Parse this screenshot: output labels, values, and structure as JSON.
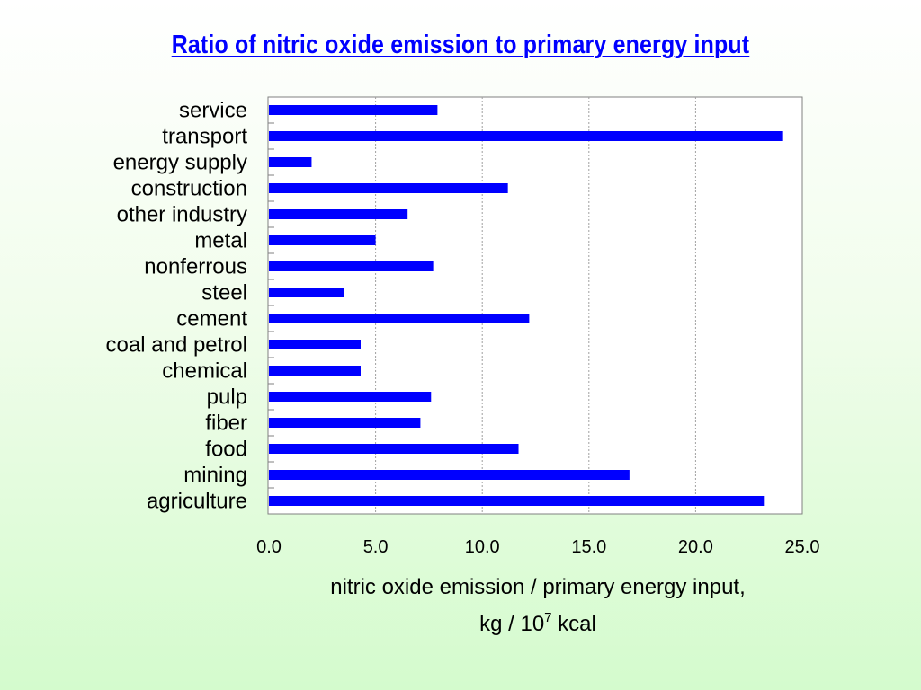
{
  "chart_data": {
    "type": "bar",
    "orientation": "horizontal",
    "title": "Ratio of nitric oxide emission to primary energy input",
    "categories": [
      "service",
      "transport",
      "energy supply",
      "construction",
      "other industry",
      "metal",
      "nonferrous",
      "steel",
      "cement",
      "coal and petrol",
      "chemical",
      "pulp",
      "fiber",
      "food",
      "mining",
      "agriculture"
    ],
    "values": [
      7.9,
      24.1,
      2.0,
      11.2,
      6.5,
      5.0,
      7.7,
      3.5,
      12.2,
      4.3,
      4.3,
      7.6,
      7.1,
      11.7,
      16.9,
      23.2
    ],
    "xlim": [
      0,
      25
    ],
    "xticks": [
      "0.0",
      "5.0",
      "10.0",
      "15.0",
      "20.0",
      "25.0"
    ],
    "xlabel_line1": "nitric oxide emission / primary energy input,",
    "xlabel_line2_pre": "kg / 10",
    "xlabel_line2_sup": "7",
    "xlabel_line2_post": " kcal",
    "grid": "vertical",
    "bar_color": "#0000ff"
  }
}
